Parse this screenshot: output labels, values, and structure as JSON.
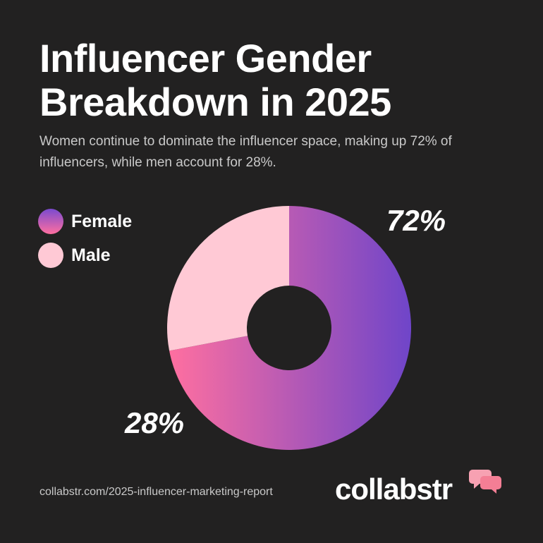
{
  "header": {
    "title_line1": "Influencer Gender",
    "title_line2": "Breakdown in 2025",
    "subtitle": "Women continue to dominate the influencer space, making up 72% of influencers, while men account for 28%."
  },
  "chart_data": {
    "type": "pie",
    "title": "Influencer Gender Breakdown in 2025",
    "categories": [
      "Female",
      "Male"
    ],
    "values": [
      72,
      28
    ],
    "data_labels": [
      "72%",
      "28%"
    ],
    "legend_position": "top-left",
    "colors": {
      "Female_start": "#ff6fa0",
      "Female_end": "#6f45c9",
      "Male": "#ffc9d5"
    }
  },
  "legend": {
    "items": [
      {
        "label": "Female"
      },
      {
        "label": "Male"
      }
    ]
  },
  "footer": {
    "url": "collabstr.com/2025-influencer-marketing-report",
    "brand": "collabstr",
    "brand_icon": "speech-bubbles-icon",
    "brand_icon_colors": [
      "#f7a1b2",
      "#f47e95"
    ]
  },
  "theme": {
    "background": "#222121",
    "text": "#ffffff",
    "muted_text": "#c9c9c9"
  }
}
